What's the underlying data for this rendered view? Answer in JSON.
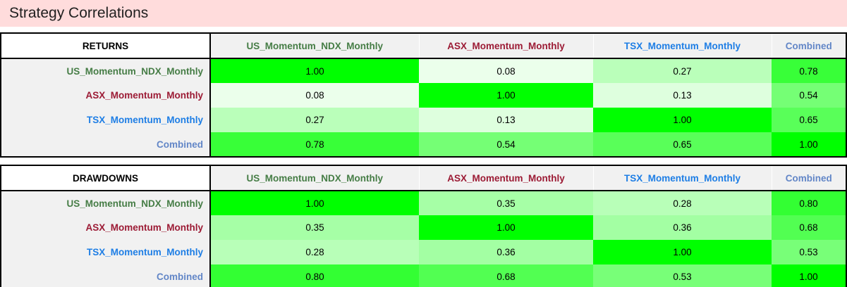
{
  "page_title": "Strategy Correlations",
  "colors": {
    "title_bar_bg": "#ffdcdc",
    "title_text": "#1f1f1f",
    "header_cell_bg": "#f1f1f1",
    "corner_cell_bg": "#ffffff",
    "table_border": "#000000",
    "heatmap_min": "#ffffff",
    "heatmap_max": "#00ff00",
    "strategy_us_green": "#467d46",
    "strategy_asx_red": "#9c1b35",
    "strategy_tsx_blue": "#1e7ee5",
    "strategy_combined_blue": "#6286c7"
  },
  "strategies": [
    {
      "label": "US_Momentum_NDX_Monthly",
      "color": "#467d46"
    },
    {
      "label": "ASX_Momentum_Monthly",
      "color": "#9c1b35"
    },
    {
      "label": "TSX_Momentum_Monthly",
      "color": "#1e7ee5"
    },
    {
      "label": "Combined",
      "color": "#6286c7"
    }
  ],
  "chart_data": [
    {
      "type": "heatmap",
      "title": "RETURNS",
      "rows": [
        "US_Momentum_NDX_Monthly",
        "ASX_Momentum_Monthly",
        "TSX_Momentum_Monthly",
        "Combined"
      ],
      "cols": [
        "US_Momentum_NDX_Monthly",
        "ASX_Momentum_Monthly",
        "TSX_Momentum_Monthly",
        "Combined"
      ],
      "values": [
        [
          1.0,
          0.08,
          0.27,
          0.78
        ],
        [
          0.08,
          1.0,
          0.13,
          0.54
        ],
        [
          0.27,
          0.13,
          1.0,
          0.65
        ],
        [
          0.78,
          0.54,
          0.65,
          1.0
        ]
      ],
      "color_scale": {
        "domain": [
          0,
          1
        ],
        "min_color": "#ffffff",
        "max_color": "#00ff00"
      },
      "value_format": "2dp"
    },
    {
      "type": "heatmap",
      "title": "DRAWDOWNS",
      "rows": [
        "US_Momentum_NDX_Monthly",
        "ASX_Momentum_Monthly",
        "TSX_Momentum_Monthly",
        "Combined"
      ],
      "cols": [
        "US_Momentum_NDX_Monthly",
        "ASX_Momentum_Monthly",
        "TSX_Momentum_Monthly",
        "Combined"
      ],
      "values": [
        [
          1.0,
          0.35,
          0.28,
          0.8
        ],
        [
          0.35,
          1.0,
          0.36,
          0.68
        ],
        [
          0.28,
          0.36,
          1.0,
          0.53
        ],
        [
          0.8,
          0.68,
          0.53,
          1.0
        ]
      ],
      "color_scale": {
        "domain": [
          0,
          1
        ],
        "min_color": "#ffffff",
        "max_color": "#00ff00"
      },
      "value_format": "2dp"
    }
  ]
}
